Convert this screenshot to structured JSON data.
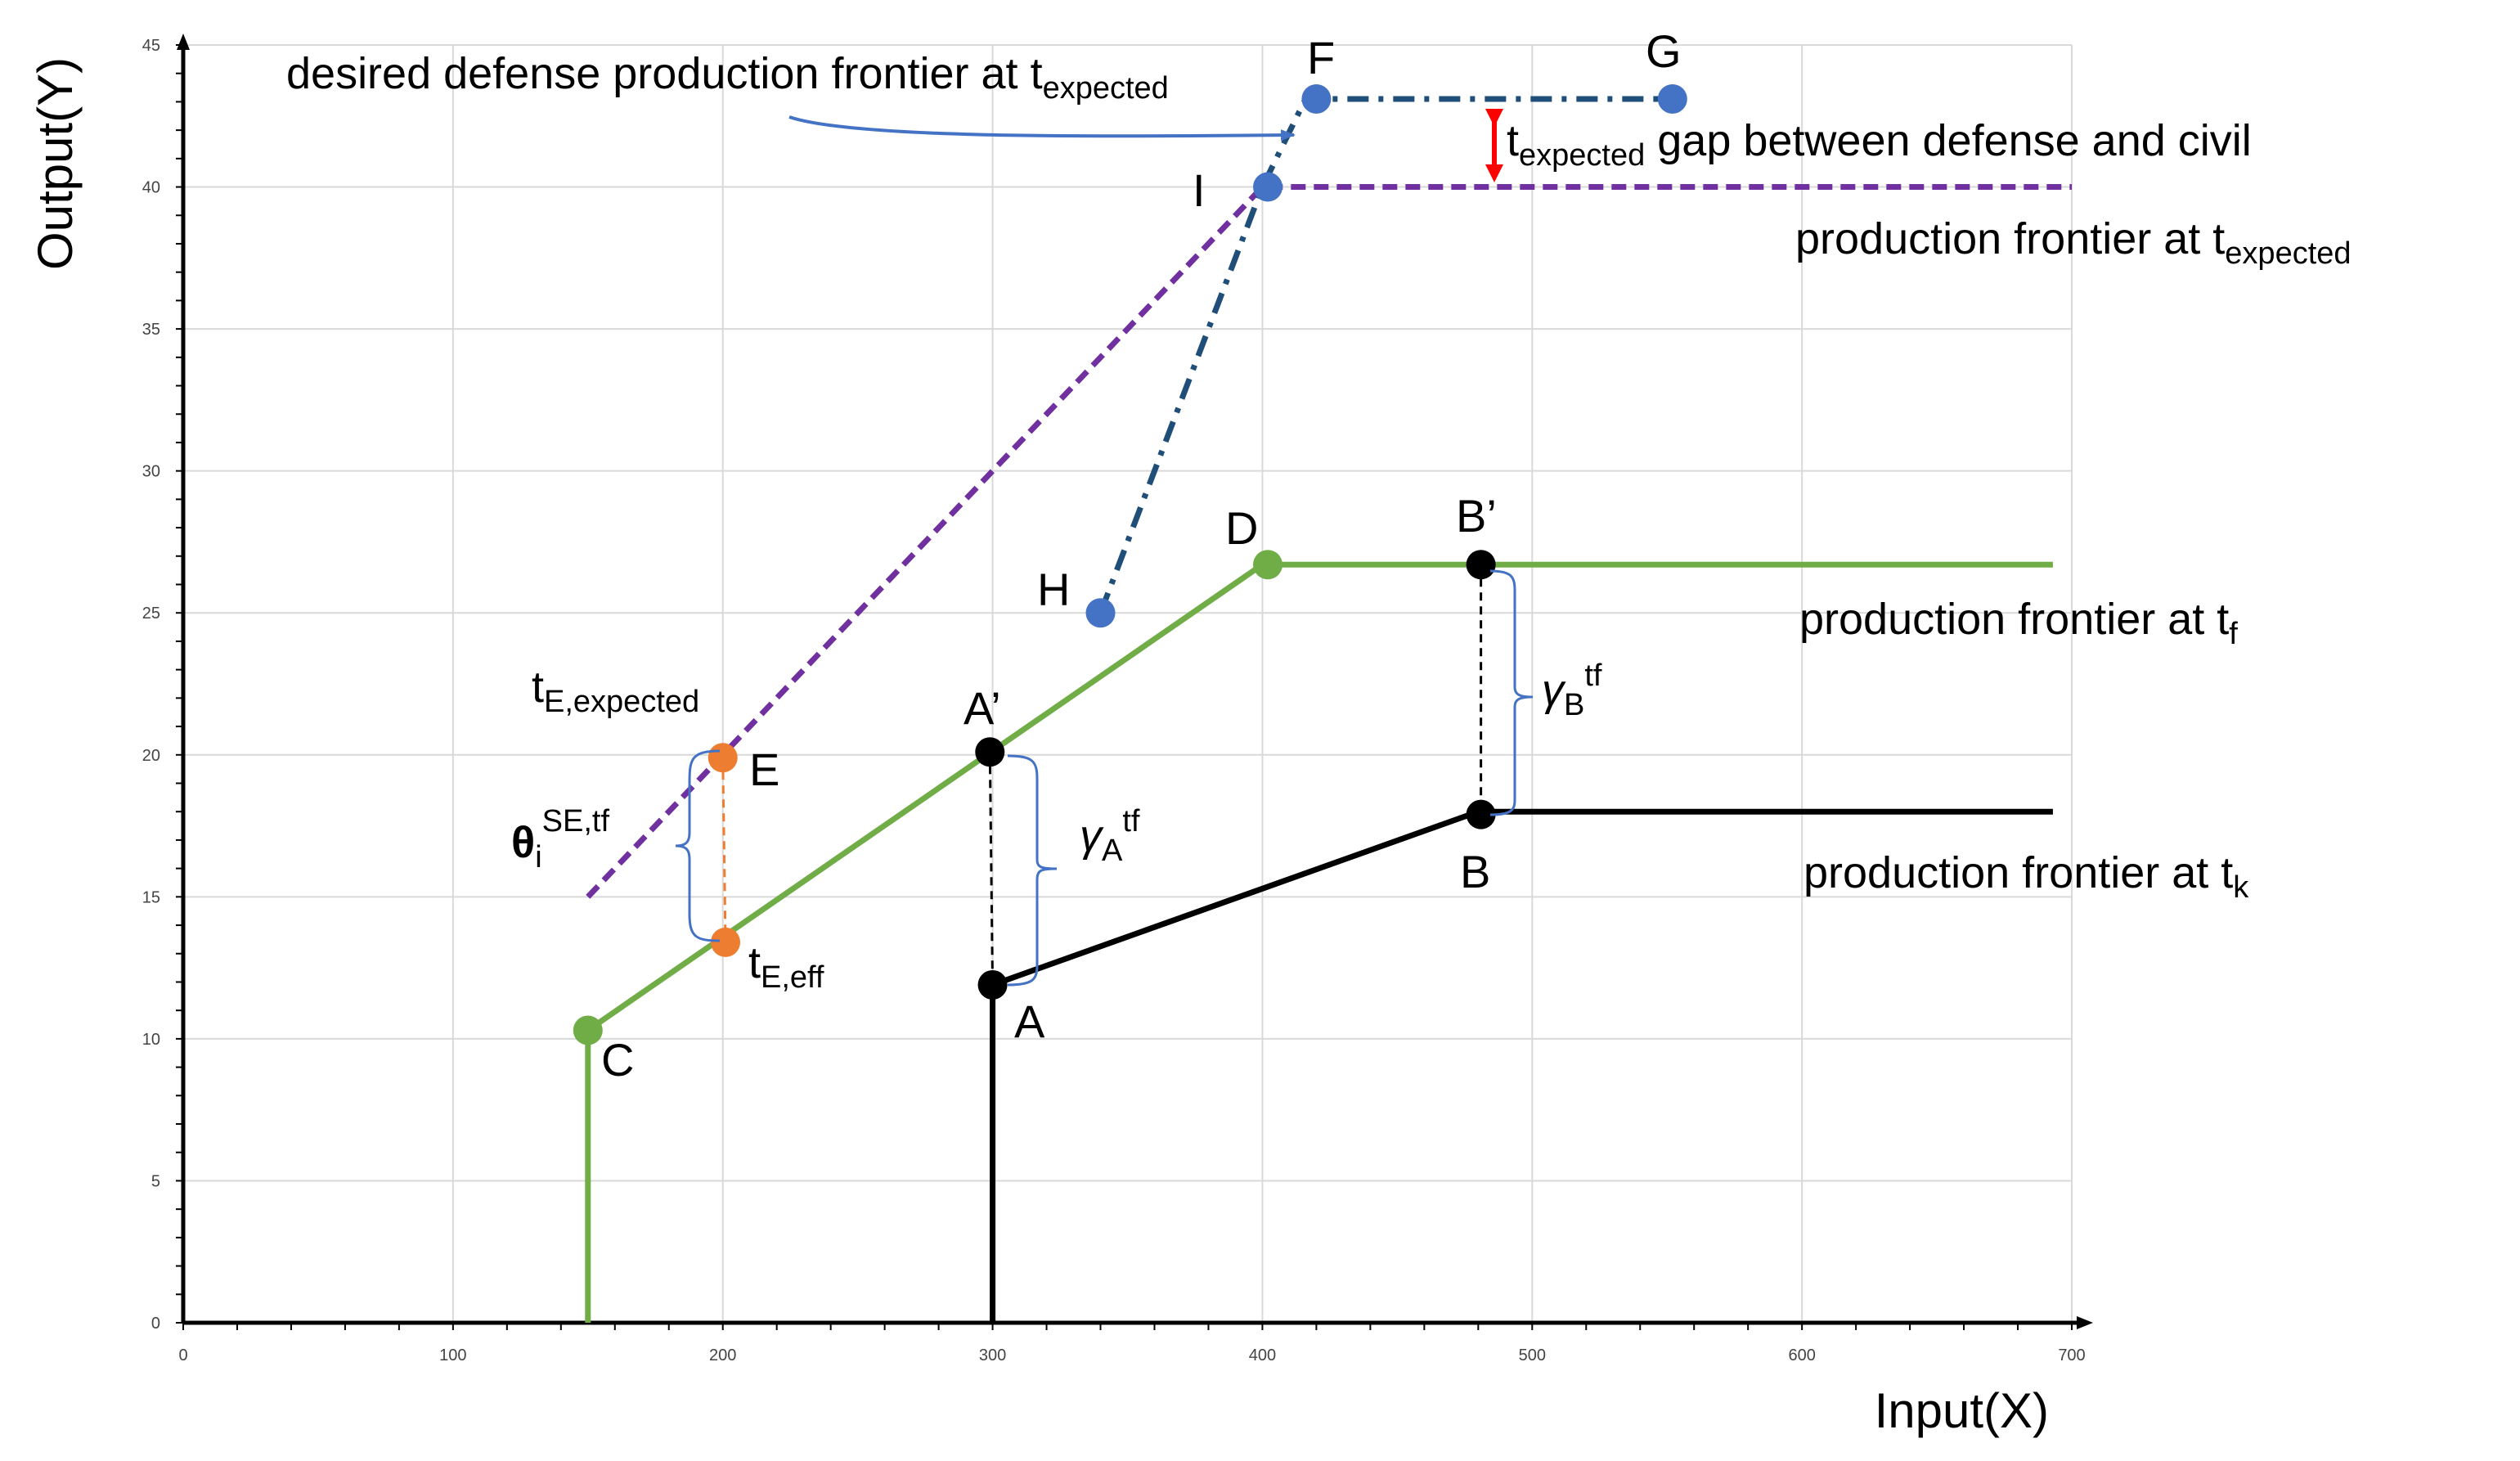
{
  "chart_data": {
    "type": "line",
    "xlabel": "Input(X)",
    "ylabel": "Output(Y)",
    "xlim": [
      0,
      700
    ],
    "ylim": [
      0,
      45
    ],
    "xticks": [
      0,
      100,
      200,
      300,
      400,
      500,
      600,
      700
    ],
    "yticks": [
      0,
      5,
      10,
      15,
      20,
      25,
      30,
      35,
      40,
      45
    ],
    "grid": true,
    "series": [
      {
        "color": "#70ad47",
        "style": "solid",
        "x": [
          150,
          150,
          400,
          693
        ],
        "y": [
          0,
          10.3,
          26.7,
          26.7
        ]
      },
      {
        "color": "#000000",
        "style": "solid",
        "x": [
          300,
          300,
          480,
          693
        ],
        "y": [
          0,
          11.9,
          18.0,
          18.0
        ]
      },
      {
        "color": "#7030a0",
        "style": "dashed",
        "x": [
          150,
          400,
          700
        ],
        "y": [
          15,
          40,
          40
        ]
      },
      {
        "color": "#1f4e79",
        "style": "dashdot",
        "x": [
          340,
          400,
          416,
          552
        ],
        "y": [
          25,
          40,
          43.1,
          43.1
        ]
      }
    ],
    "points": [
      {
        "name": "F",
        "x": 420,
        "y": 43.1,
        "color": "#4472c4"
      },
      {
        "name": "G",
        "x": 552,
        "y": 43.1,
        "color": "#4472c4"
      },
      {
        "name": "I",
        "x": 402,
        "y": 40,
        "color": "#4472c4"
      },
      {
        "name": "H",
        "x": 340,
        "y": 25,
        "color": "#4472c4"
      },
      {
        "name": "D",
        "x": 402,
        "y": 26.7,
        "color": "#70ad47"
      },
      {
        "name": "B’",
        "x": 481,
        "y": 26.7,
        "color": "#000000"
      },
      {
        "name": "A’",
        "x": 299,
        "y": 20.1,
        "color": "#000000"
      },
      {
        "name": "E",
        "x": 200,
        "y": 19.9,
        "color": "#ed7d31"
      },
      {
        "name": "B",
        "x": 481,
        "y": 17.9,
        "color": "#000000"
      },
      {
        "name": "A",
        "x": 300,
        "y": 11.9,
        "color": "#000000"
      },
      {
        "name": "C",
        "x": 150,
        "y": 10.3,
        "color": "#70ad47"
      },
      {
        "name": "tE,eff",
        "x": 201,
        "y": 13.4,
        "color": "#ed7d31"
      }
    ],
    "annotations": {
      "desired_main": "desired defense production frontier at t",
      "desired_sub": "expected",
      "gap_t": "t",
      "gap_sub": "expected",
      "gap_text": " gap between defense and civil",
      "pf_expected_main": "production frontier at t",
      "pf_expected_sub": "expected",
      "pf_f_main": "production frontier at t",
      "pf_f_sub": "f",
      "pf_k_main": "production frontier at t",
      "pf_k_sub": "k",
      "te_expected_main": "t",
      "te_expected_sub": "E,expected",
      "te_eff_main": "t",
      "te_eff_sub": "E,eff",
      "theta_main": "θ",
      "theta_sub": "i",
      "theta_sup": "SE,tf",
      "gamma_a_main": "γ",
      "gamma_a_sub": "A",
      "gamma_a_sup": "tf",
      "gamma_b_main": "γ",
      "gamma_b_sub": "B",
      "gamma_b_sup": "tf"
    }
  }
}
